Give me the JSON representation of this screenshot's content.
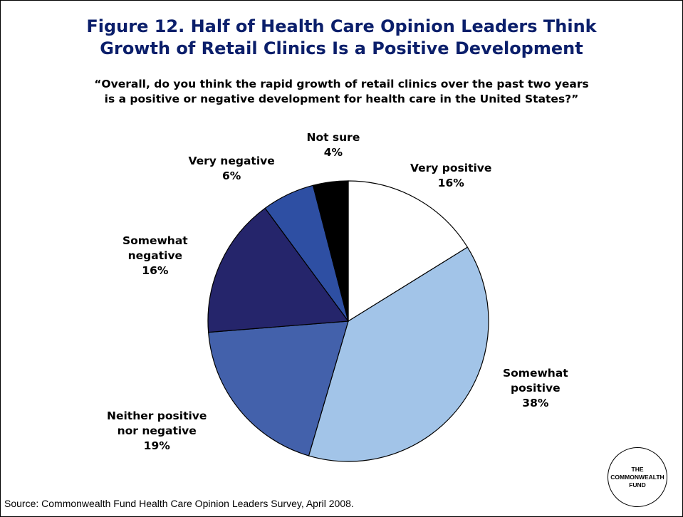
{
  "title": {
    "line1": "Figure 12. Half of Health Care Opinion Leaders Think",
    "line2": "Growth of Retail Clinics Is a Positive Development"
  },
  "subtitle": {
    "line1": "“Overall, do you think the rapid growth of retail clinics over the past two years",
    "line2": "is a positive or negative development for health care in the United States?”"
  },
  "source": "Source: Commonwealth Fund Health Care Opinion Leaders Survey, April 2008.",
  "logo": {
    "line1": "THE",
    "line2": "COMMONWEALTH",
    "line3": "FUND"
  },
  "colors": {
    "title": "#0b1f6b",
    "very_positive": "#ffffff",
    "somewhat_positive": "#a2c4e8",
    "neither": "#4361ab",
    "somewhat_negative": "#25256b",
    "very_negative": "#2e4fa3",
    "not_sure": "#000000"
  },
  "chart_data": {
    "type": "pie",
    "title": "Figure 12. Half of Health Care Opinion Leaders Think Growth of Retail Clinics Is a Positive Development",
    "subtitle": "“Overall, do you think the rapid growth of retail clinics over the past two years is a positive or negative development for health care in the United States?”",
    "slices": [
      {
        "label_lines": [
          "Very positive"
        ],
        "value": 16,
        "value_label": "16%",
        "color": "#ffffff"
      },
      {
        "label_lines": [
          "Somewhat",
          "positive"
        ],
        "value": 38,
        "value_label": "38%",
        "color": "#a2c4e8"
      },
      {
        "label_lines": [
          "Neither positive",
          "nor negative"
        ],
        "value": 19,
        "value_label": "19%",
        "color": "#4361ab"
      },
      {
        "label_lines": [
          "Somewhat",
          "negative"
        ],
        "value": 16,
        "value_label": "16%",
        "color": "#25256b"
      },
      {
        "label_lines": [
          "Very negative"
        ],
        "value": 6,
        "value_label": "6%",
        "color": "#2e4fa3"
      },
      {
        "label_lines": [
          "Not sure"
        ],
        "value": 4,
        "value_label": "4%",
        "color": "#000000"
      }
    ],
    "start_position": "12 o'clock",
    "direction": "clockwise",
    "legend": "none (direct labels)"
  }
}
